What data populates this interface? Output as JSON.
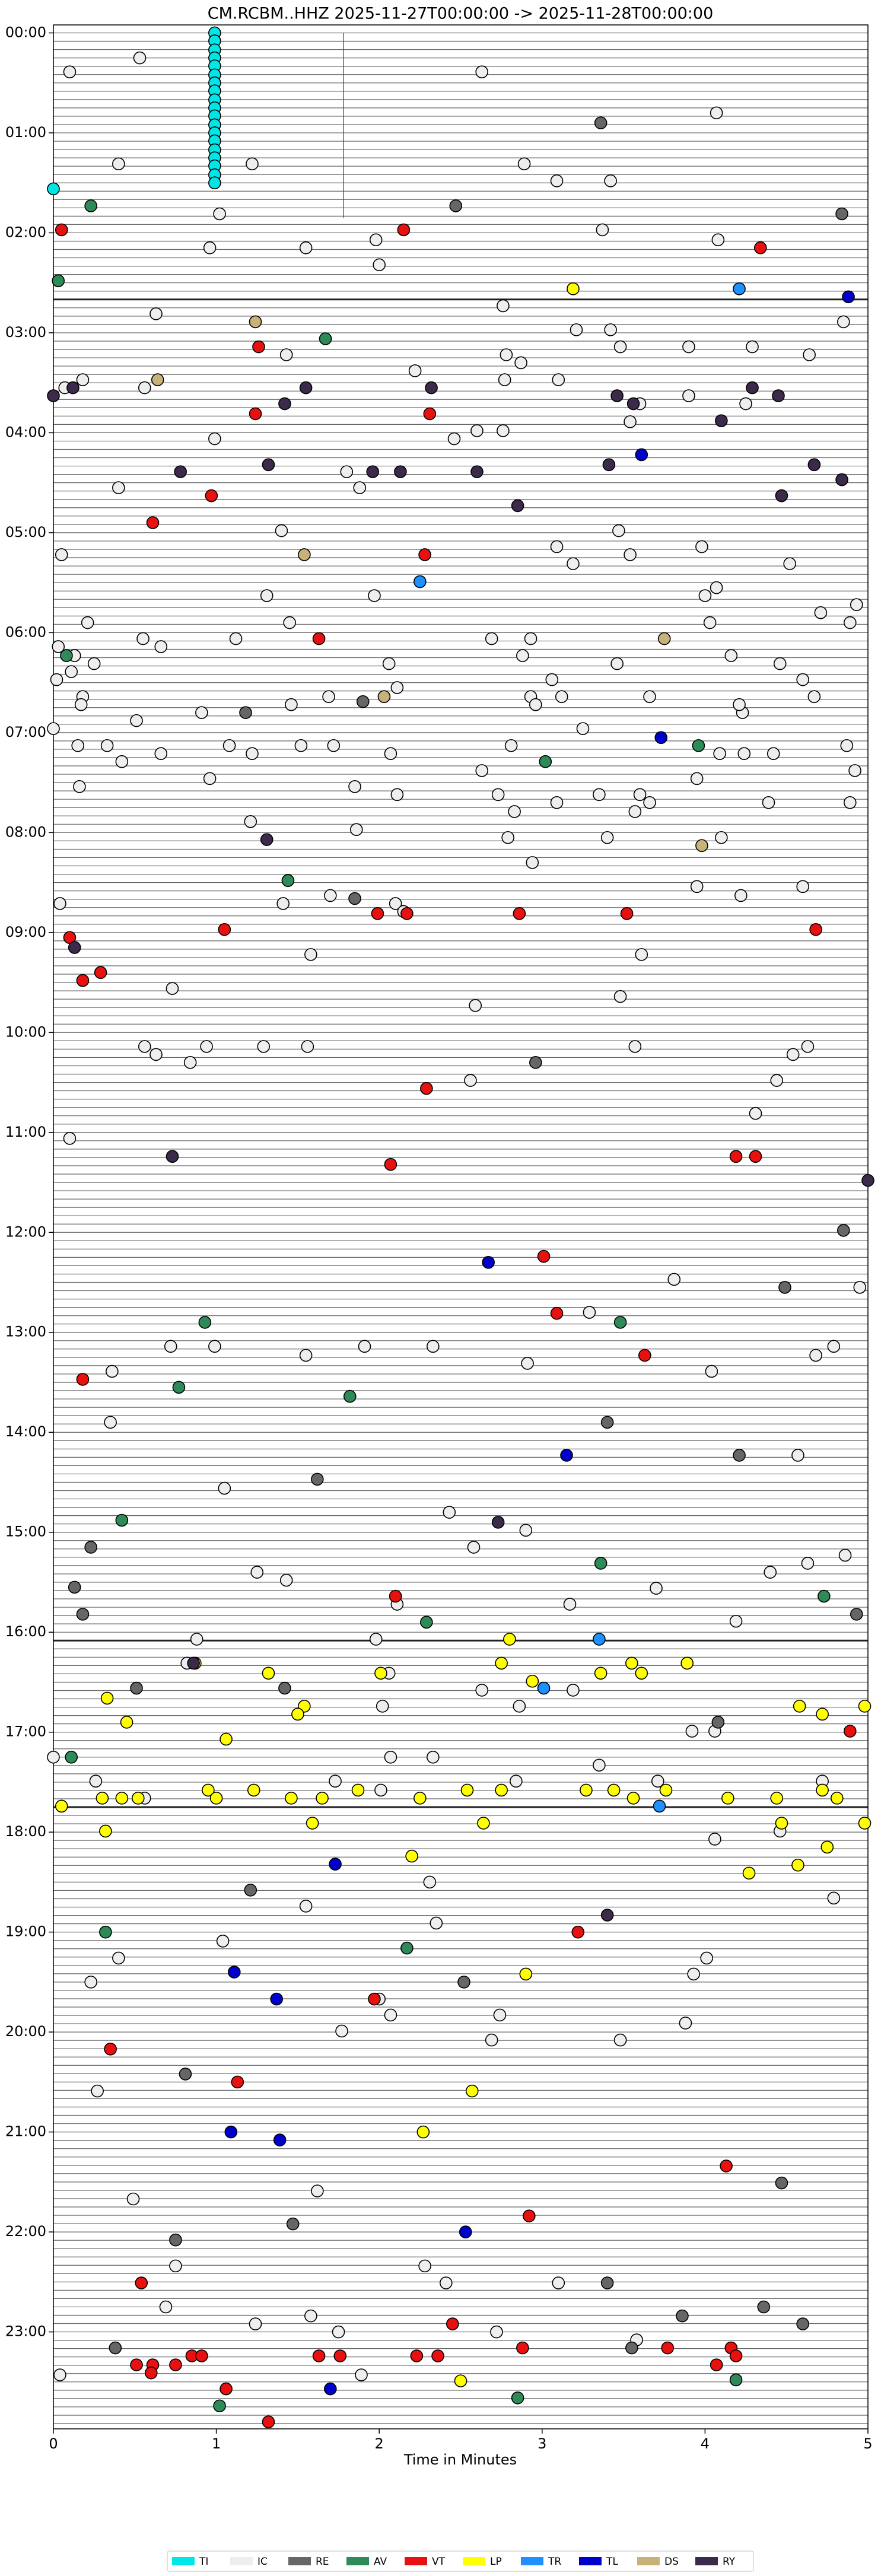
{
  "chart_data": {
    "type": "scatter",
    "title": "CM.RCBM..HHZ  2025-11-27T00:00:00 -> 2025-11-28T00:00:00",
    "x_label": "Time in Minutes",
    "xlim": [
      0,
      5
    ],
    "xticks": [
      0,
      1,
      2,
      3,
      4,
      5
    ],
    "ylim": [
      23.97,
      -0.08
    ],
    "yticks": [
      {
        "value": 0,
        "label": "00:00"
      },
      {
        "value": 1,
        "label": "01:00"
      },
      {
        "value": 2,
        "label": "02:00"
      },
      {
        "value": 3,
        "label": "03:00"
      },
      {
        "value": 4,
        "label": "04:00"
      },
      {
        "value": 5,
        "label": "05:00"
      },
      {
        "value": 6,
        "label": "06:00"
      },
      {
        "value": 7,
        "label": "07:00"
      },
      {
        "value": 8,
        "label": "08:00"
      },
      {
        "value": 9,
        "label": "09:00"
      },
      {
        "value": 10,
        "label": "10:00"
      },
      {
        "value": 11,
        "label": "11:00"
      },
      {
        "value": 12,
        "label": "12:00"
      },
      {
        "value": 13,
        "label": "13:00"
      },
      {
        "value": 14,
        "label": "14:00"
      },
      {
        "value": 15,
        "label": "15:00"
      },
      {
        "value": 16,
        "label": "16:00"
      },
      {
        "value": 17,
        "label": "17:00"
      },
      {
        "value": 18,
        "label": "18:00"
      },
      {
        "value": 19,
        "label": "19:00"
      },
      {
        "value": 20,
        "label": "20:00"
      },
      {
        "value": 21,
        "label": "21:00"
      },
      {
        "value": 22,
        "label": "22:00"
      },
      {
        "value": 23,
        "label": "23:00"
      }
    ],
    "legend": "bottom",
    "series": [
      {
        "name": "TI",
        "color": "#00e5e5",
        "x": [
          0.99,
          0.99,
          0.99,
          0.99,
          0.99,
          0.99,
          0.99,
          0.99,
          0.99,
          0.99,
          0.99,
          0.99,
          0.99,
          0.99,
          0.99,
          0.99,
          0.99,
          0.99,
          0.99,
          0
        ],
        "values": [
          0,
          0.08,
          0.17,
          0.25,
          0.33,
          0.42,
          0.5,
          0.58,
          0.67,
          0.75,
          0.83,
          0.92,
          1,
          1.08,
          1.17,
          1.25,
          1.33,
          1.42,
          1.5,
          1.56
        ]
      },
      {
        "name": "IC",
        "color": "#eeeeee",
        "x": [
          0.53,
          0.1,
          2.63,
          4.07,
          0.4,
          1.22,
          2.89,
          3.09,
          3.42,
          1.02,
          3.37,
          0.96,
          1.55,
          1.98,
          4.08,
          2.0,
          0.63,
          2.76,
          3.21,
          3.42,
          4.85,
          1.43,
          2.78,
          2.87,
          3.48,
          3.9,
          4.29,
          4.64,
          0.07,
          0.18,
          0.56,
          2.22,
          2.77,
          3.1,
          3.6,
          3.9,
          4.25,
          0.99,
          2.46,
          2.6,
          2.76,
          3.54,
          0.4,
          1.8,
          1.88,
          1.4,
          3.47,
          0.05,
          3.09,
          3.19,
          3.54,
          3.98,
          4.52,
          1.31,
          1.97,
          4.0,
          4.07,
          4.71,
          4.93,
          0.21,
          1.45,
          4.03,
          4.89,
          0.03,
          0.55,
          0.66,
          1.12,
          2.69,
          2.93,
          0.13,
          0.25,
          0.02,
          0.11,
          2.06,
          2.88,
          3.46,
          4.16,
          4.46,
          0.18,
          0.17,
          0.51,
          0.91,
          1.46,
          1.69,
          2.11,
          3.06,
          2.93,
          2.96,
          3.12,
          3.66,
          4.23,
          4.6,
          4.67,
          4.21,
          0.0,
          0.15,
          0.33,
          0.42,
          0.66,
          1.08,
          1.22,
          1.52,
          1.72,
          2.07,
          2.81,
          3.25,
          2.63,
          2.73,
          2.83,
          0.96,
          1.85,
          2.11,
          0.16,
          3.09,
          3.35,
          3.6,
          3.57,
          3.66,
          3.95,
          4.09,
          4.24,
          4.42,
          4.39,
          4.87,
          4.92,
          4.89,
          1.21,
          1.86,
          2.79,
          3.4,
          4.1,
          2.94,
          0.04,
          1.41,
          1.7,
          2.1,
          2.15,
          3.95,
          4.22,
          4.6,
          1.58,
          3.61,
          0.73,
          2.59,
          3.48,
          0.56,
          0.63,
          0.94,
          1.29,
          1.56,
          0.84,
          3.57,
          4.63,
          4.54,
          2.56,
          4.44,
          4.31,
          0.1,
          3.81,
          4.95,
          3.29,
          0.72,
          0.99,
          1.55,
          1.91,
          2.33,
          2.91,
          0.36,
          4.04,
          4.68,
          4.79,
          0.35,
          4.57,
          1.05,
          2.43,
          2.58,
          2.9,
          4.86,
          1.25,
          1.43,
          4.4,
          4.63,
          2.11,
          3.7,
          3.17,
          4.19,
          0.88,
          1.98,
          0.82,
          2.06,
          2.63,
          2.86,
          3.19,
          2.02,
          3.92,
          4.06,
          0.0,
          2.07,
          2.33,
          3.35,
          0.26,
          1.73,
          2.01,
          2.84,
          3.71,
          4.72,
          0.56,
          4.06,
          4.46,
          4.79,
          1.55,
          2.31,
          2.35,
          1.04,
          0.4,
          4.01,
          3.93,
          0.23,
          2.0,
          2.07,
          2.74,
          3.88,
          1.77,
          2.69,
          3.48,
          0.27,
          0.49,
          1.62,
          0.75,
          2.28,
          2.41,
          3.1,
          0.69,
          1.58,
          1.24,
          1.75,
          2.72,
          1.89,
          3.58,
          0.04
        ],
        "values": [
          0.25,
          0.39,
          0.39,
          0.8,
          1.31,
          1.31,
          1.31,
          1.48,
          1.48,
          1.81,
          1.97,
          2.15,
          2.15,
          2.07,
          2.07,
          2.32,
          2.81,
          2.73,
          2.97,
          2.97,
          2.89,
          3.22,
          3.22,
          3.3,
          3.14,
          3.14,
          3.14,
          3.22,
          3.55,
          3.47,
          3.55,
          3.38,
          3.47,
          3.47,
          3.71,
          3.63,
          3.71,
          4.06,
          4.06,
          3.98,
          3.98,
          3.89,
          4.55,
          4.39,
          4.55,
          4.98,
          4.98,
          5.22,
          5.14,
          5.31,
          5.22,
          5.14,
          5.31,
          5.63,
          5.63,
          5.63,
          5.55,
          5.8,
          5.72,
          5.9,
          5.9,
          5.9,
          5.9,
          6.14,
          6.06,
          6.14,
          6.06,
          6.06,
          6.06,
          6.23,
          6.31,
          6.47,
          6.39,
          6.31,
          6.23,
          6.31,
          6.23,
          6.31,
          6.64,
          6.72,
          6.88,
          6.8,
          6.72,
          6.64,
          6.55,
          6.47,
          6.64,
          6.72,
          6.64,
          6.64,
          6.8,
          6.47,
          6.64,
          6.72,
          6.96,
          7.13,
          7.13,
          7.29,
          7.21,
          7.13,
          7.21,
          7.13,
          7.13,
          7.21,
          7.13,
          6.96,
          7.38,
          7.62,
          7.79,
          7.46,
          7.54,
          7.62,
          7.54,
          7.7,
          7.62,
          7.62,
          7.79,
          7.7,
          7.46,
          7.21,
          7.21,
          7.21,
          7.7,
          7.13,
          7.38,
          7.7,
          7.89,
          7.97,
          8.05,
          8.05,
          8.05,
          8.3,
          8.71,
          8.71,
          8.63,
          8.71,
          8.79,
          8.54,
          8.63,
          8.54,
          9.22,
          9.22,
          9.56,
          9.73,
          9.64,
          10.14,
          10.22,
          10.14,
          10.14,
          10.14,
          10.3,
          10.14,
          10.14,
          10.22,
          10.48,
          10.48,
          10.81,
          11.06,
          12.47,
          12.55,
          12.8,
          13.14,
          13.14,
          13.23,
          13.14,
          13.14,
          13.31,
          13.39,
          13.39,
          13.23,
          13.14,
          13.9,
          14.23,
          14.56,
          14.8,
          15.15,
          14.98,
          15.23,
          15.4,
          15.48,
          15.4,
          15.31,
          15.72,
          15.56,
          15.72,
          15.89,
          16.07,
          16.07,
          16.31,
          16.41,
          16.58,
          16.74,
          16.58,
          16.74,
          16.99,
          16.99,
          17.25,
          17.25,
          17.25,
          17.33,
          17.49,
          17.49,
          17.58,
          17.49,
          17.49,
          17.49,
          17.66,
          18.07,
          17.99,
          18.66,
          18.74,
          18.5,
          18.91,
          19.09,
          19.26,
          19.26,
          19.42,
          19.5,
          19.67,
          19.83,
          19.83,
          19.91,
          19.99,
          20.08,
          20.08,
          20.59,
          21.67,
          21.59,
          22.34,
          22.34,
          22.51,
          22.51,
          22.75,
          22.84,
          22.92,
          23.0,
          23.0,
          23.43,
          23.08,
          23.43
        ]
      },
      {
        "name": "RE",
        "color": "#666666",
        "x": [
          3.36,
          2.47,
          4.84,
          1.9,
          1.18,
          1.85,
          2.96,
          4.85,
          4.49,
          3.4,
          4.21,
          1.62,
          0.23,
          0.18,
          0.13,
          4.93,
          0.51,
          1.42,
          4.08,
          1.21,
          2.52,
          0.81,
          4.47,
          1.47,
          0.75,
          3.4,
          3.86,
          4.36,
          4.6,
          0.38,
          3.55
        ],
        "values": [
          0.9,
          1.73,
          1.81,
          6.69,
          6.8,
          8.66,
          10.3,
          11.98,
          12.55,
          13.9,
          14.23,
          14.47,
          15.15,
          15.82,
          15.55,
          15.82,
          16.56,
          16.56,
          16.9,
          18.58,
          19.5,
          20.42,
          21.51,
          21.92,
          22.08,
          22.51,
          22.84,
          22.75,
          22.92,
          23.16,
          23.16
        ]
      },
      {
        "name": "AV",
        "color": "#2e8b57",
        "x": [
          0.23,
          0.03,
          1.67,
          0.08,
          3.96,
          3.02,
          1.44,
          0.93,
          3.48,
          0.77,
          1.82,
          0.42,
          3.36,
          4.73,
          2.29,
          0.11,
          0.32,
          2.17,
          2.85,
          1.02,
          4.19
        ],
        "values": [
          1.73,
          2.48,
          3.06,
          6.23,
          7.13,
          7.29,
          8.48,
          12.9,
          12.9,
          13.55,
          13.64,
          14.88,
          15.31,
          15.64,
          15.9,
          17.25,
          19.0,
          19.16,
          23.66,
          23.74,
          23.48
        ]
      },
      {
        "name": "VT",
        "color": "#e8110f",
        "x": [
          0.05,
          2.15,
          4.34,
          1.26,
          1.24,
          2.31,
          0.97,
          0.61,
          2.28,
          1.63,
          1.99,
          2.17,
          2.86,
          3.52,
          1.05,
          4.68,
          0.1,
          0.18,
          0.29,
          2.29,
          2.07,
          4.19,
          4.31,
          3.01,
          3.09,
          3.63,
          0.18,
          2.1,
          4.89,
          3.22,
          1.97,
          0.35,
          1.13,
          4.13,
          2.92,
          0.54,
          2.45,
          0.51,
          0.61,
          0.75,
          0.85,
          0.91,
          0.6,
          1.63,
          1.76,
          2.23,
          2.36,
          2.88,
          3.77,
          4.16,
          4.07,
          4.19,
          1.06,
          1.32
        ],
        "values": [
          1.97,
          1.97,
          2.15,
          3.14,
          3.81,
          3.81,
          4.63,
          4.9,
          5.22,
          6.06,
          8.81,
          8.81,
          8.81,
          8.81,
          8.97,
          8.97,
          9.05,
          9.48,
          9.4,
          10.56,
          11.32,
          11.24,
          11.24,
          12.24,
          12.81,
          13.23,
          13.47,
          15.64,
          16.99,
          19.0,
          19.67,
          20.17,
          20.5,
          21.34,
          21.84,
          22.51,
          22.92,
          23.33,
          23.33,
          23.33,
          23.24,
          23.24,
          23.41,
          23.24,
          23.24,
          23.24,
          23.24,
          23.16,
          23.16,
          23.16,
          23.33,
          23.24,
          23.57,
          23.9
        ]
      },
      {
        "name": "LP",
        "color": "#ffff00",
        "x": [
          3.19,
          2.8,
          0.87,
          1.32,
          2.01,
          2.75,
          3.36,
          3.55,
          3.61,
          3.89,
          0.33,
          1.54,
          1.5,
          2.94,
          4.58,
          4.72,
          4.98,
          0.45,
          1.06,
          0.05,
          0.3,
          0.42,
          0.52,
          0.95,
          1.0,
          1.23,
          1.46,
          1.65,
          1.87,
          2.25,
          2.54,
          2.75,
          3.27,
          3.44,
          3.56,
          3.76,
          4.14,
          4.44,
          4.72,
          4.81,
          0.32,
          1.59,
          2.64,
          4.47,
          4.98,
          4.75,
          2.2,
          4.57,
          4.27,
          2.9,
          2.57,
          2.27,
          2.5
        ],
        "values": [
          2.56,
          16.07,
          16.31,
          16.41,
          16.41,
          16.31,
          16.41,
          16.31,
          16.41,
          16.31,
          16.66,
          16.74,
          16.82,
          16.49,
          16.74,
          16.82,
          16.74,
          16.9,
          17.07,
          17.74,
          17.66,
          17.66,
          17.66,
          17.58,
          17.66,
          17.58,
          17.66,
          17.66,
          17.58,
          17.66,
          17.58,
          17.58,
          17.58,
          17.58,
          17.66,
          17.58,
          17.66,
          17.66,
          17.58,
          17.66,
          17.99,
          17.91,
          17.91,
          17.91,
          17.91,
          18.15,
          18.24,
          18.33,
          18.41,
          19.42,
          20.59,
          21.0,
          23.49
        ]
      },
      {
        "name": "TR",
        "color": "#1e90ff",
        "x": [
          4.21,
          2.25,
          3.35,
          3.01,
          3.72
        ],
        "values": [
          2.56,
          5.49,
          16.07,
          16.56,
          17.74
        ]
      },
      {
        "name": "TL",
        "color": "#0000cd",
        "x": [
          4.88,
          3.61,
          3.73,
          2.67,
          3.15,
          1.73,
          1.11,
          1.37,
          1.09,
          1.39,
          2.53,
          1.7
        ],
        "values": [
          2.64,
          4.22,
          7.05,
          12.3,
          14.23,
          18.32,
          19.4,
          19.67,
          21.0,
          21.08,
          22.0,
          23.57
        ]
      },
      {
        "name": "DS",
        "color": "#c8b27a",
        "x": [
          1.24,
          0.64,
          1.54,
          3.75,
          2.03,
          3.98
        ],
        "values": [
          2.89,
          3.47,
          5.22,
          6.06,
          6.64,
          8.13
        ]
      },
      {
        "name": "RY",
        "color": "#3b2a4a",
        "x": [
          0.0,
          0.12,
          1.55,
          2.32,
          3.46,
          4.29,
          4.45,
          1.42,
          3.56,
          1.32,
          0.78,
          1.96,
          2.13,
          2.6,
          3.41,
          4.1,
          4.67,
          4.84,
          4.47,
          2.85,
          1.31,
          0.73,
          5.0,
          2.73,
          0.13,
          0.86,
          3.4
        ],
        "values": [
          3.63,
          3.55,
          3.55,
          3.55,
          3.63,
          3.55,
          3.63,
          3.71,
          3.71,
          4.32,
          4.39,
          4.39,
          4.39,
          4.39,
          4.32,
          3.88,
          4.32,
          4.47,
          4.63,
          4.73,
          8.07,
          11.24,
          11.48,
          14.9,
          9.15,
          16.31,
          18.83
        ]
      }
    ]
  }
}
